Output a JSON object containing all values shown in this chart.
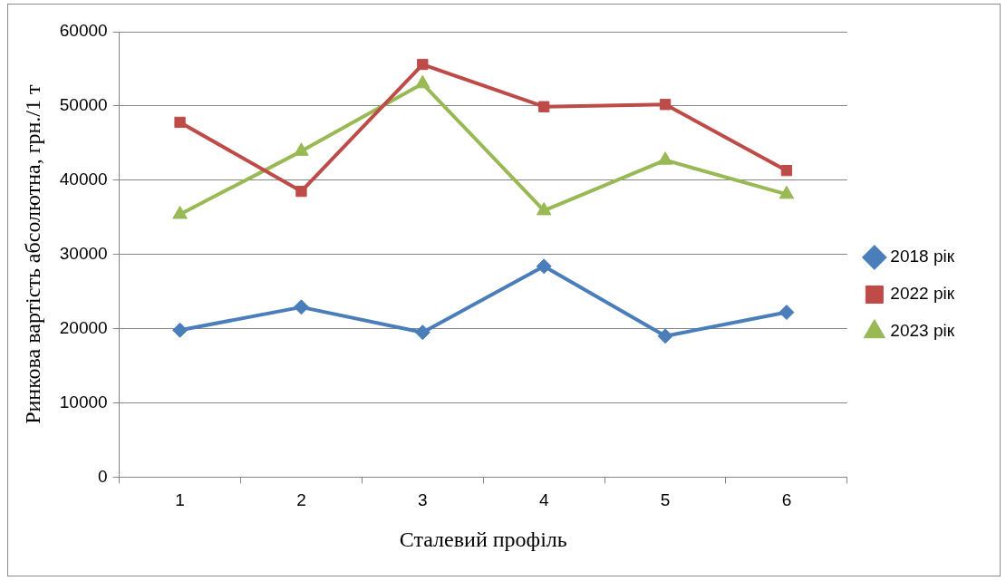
{
  "chart_data": {
    "type": "line",
    "xlabel": "Сталевий профіль",
    "ylabel": "Ринкова вартість абсолютна, грн./1 т",
    "categories": [
      "1",
      "2",
      "3",
      "4",
      "5",
      "6"
    ],
    "series": [
      {
        "name": "2018 рік",
        "color": "#4a7ebb",
        "marker": "diamond",
        "values": [
          19800,
          22900,
          19500,
          28400,
          19000,
          22200
        ]
      },
      {
        "name": "2022 рік",
        "color": "#be4b48",
        "marker": "square",
        "values": [
          47800,
          38500,
          55600,
          49900,
          50200,
          41300
        ]
      },
      {
        "name": "2023 рік",
        "color": "#98b954",
        "marker": "triangle",
        "values": [
          35400,
          43900,
          53000,
          35900,
          42700,
          38100
        ]
      }
    ],
    "ylim": [
      0,
      60000
    ],
    "yticks": [
      0,
      10000,
      20000,
      30000,
      40000,
      50000,
      60000
    ],
    "grid": "y",
    "legend": "right"
  }
}
